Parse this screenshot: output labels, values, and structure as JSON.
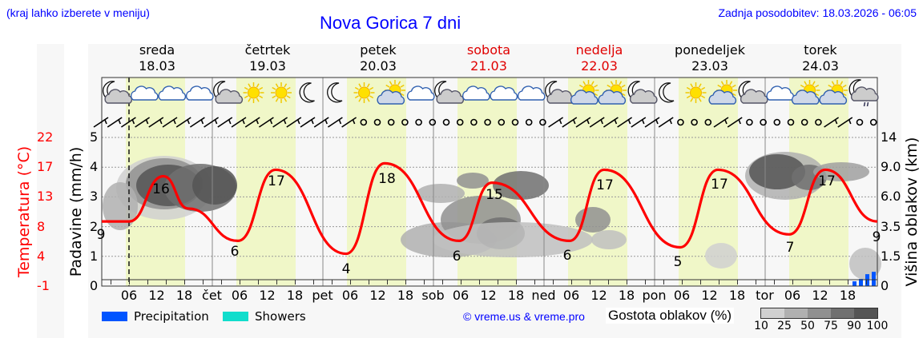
{
  "header": {
    "region_hint": "(kraj lahko izberete v meniju)",
    "title": "Nova Gorica 7 dni",
    "last_update": "Zadnja posodobitev: 18.03.2026 - 06:05"
  },
  "days": [
    {
      "name": "sreda",
      "date": "18.03",
      "weekend": false
    },
    {
      "name": "četrtek",
      "date": "19.03",
      "weekend": false
    },
    {
      "name": "petek",
      "date": "20.03",
      "weekend": false
    },
    {
      "name": "sobota",
      "date": "21.03",
      "weekend": true
    },
    {
      "name": "nedelja",
      "date": "22.03",
      "weekend": true
    },
    {
      "name": "ponedeljek",
      "date": "23.03",
      "weekend": false
    },
    {
      "name": "torek",
      "date": "24.03",
      "weekend": false
    }
  ],
  "axes": {
    "temp_label": "Temperatura (°C)",
    "temp_ticks": [
      "22",
      "17",
      "13",
      "8",
      "4",
      "-1"
    ],
    "precip_label": "Padavine (mm/h)",
    "precip_ticks": [
      "5",
      "4",
      "3",
      "2",
      "1",
      "0"
    ],
    "cloud_label": "Višina oblakov (km)",
    "cloud_ticks": [
      "14",
      "9.0",
      "6.0",
      "3.5",
      "1.5",
      "0"
    ],
    "x_ticks": [
      "06",
      "12",
      "18",
      "čet",
      "06",
      "12",
      "18",
      "pet",
      "06",
      "12",
      "18",
      "sob",
      "06",
      "12",
      "18",
      "ned",
      "06",
      "12",
      "18",
      "pon",
      "06",
      "12",
      "18",
      "tor",
      "06",
      "12",
      "18"
    ]
  },
  "weather_icons": [
    "moon-cloud",
    "cloud",
    "cloud",
    "cloud",
    "moon-cloud",
    "sun",
    "sun",
    "moon",
    "moon",
    "sun",
    "sun-cloud",
    "cloud",
    "moon-cloud",
    "cloud",
    "cloud",
    "cloud",
    "moon-cloud",
    "sun-cloud",
    "sun-cloud",
    "moon-cloud",
    "moon",
    "sun",
    "sun-cloud",
    "moon-cloud",
    "cloud",
    "sun-cloud",
    "sun-cloud",
    "moon-cloud-rain"
  ],
  "legend": {
    "precipitation": "Precipitation",
    "showers": "Showers",
    "copyright": "© vreme.us & vreme.pro",
    "cloud_density_label": "Gostota oblakov (%)",
    "cloud_density_ticks": [
      "10",
      "25",
      "50",
      "75",
      "90",
      "100"
    ],
    "colors": {
      "precipitation": "#0055ff",
      "showers": "#11ddcc",
      "temperature": "#ff0000",
      "daylight": "#f0f7c8"
    }
  },
  "chart_data": {
    "type": "line",
    "title": "Nova Gorica 7 dni",
    "xlabel": "",
    "ylabel": "Temperatura (°C)",
    "ylim": [
      -1,
      22
    ],
    "grid": true,
    "series": [
      {
        "name": "Temperatura (°C)",
        "color": "#ff0000",
        "x": [
          "18.03 02h",
          "18.03 06h",
          "18.03 13h",
          "18.03 18h",
          "19.03 06h",
          "19.03 14h",
          "20.03 05h",
          "20.03 14h",
          "21.03 06h",
          "21.03 13h",
          "22.03 06h",
          "22.03 14h",
          "23.03 05h",
          "23.03 14h",
          "24.03 05h",
          "24.03 14h",
          "24.03 24h"
        ],
        "values": [
          9,
          9,
          16,
          11,
          6,
          17,
          4,
          18,
          6,
          15,
          6,
          17,
          5,
          17,
          7,
          17,
          9
        ]
      },
      {
        "name": "Precipitation (mm/h)",
        "color": "#0055ff",
        "x": [
          "24.03 20h",
          "24.03 21h",
          "24.03 22h",
          "24.03 23h"
        ],
        "values": [
          0.2,
          0.3,
          0.5,
          0.6
        ]
      }
    ],
    "annotations": {
      "temp_labels": [
        "9",
        "16",
        "6",
        "17",
        "4",
        "18",
        "6",
        "15",
        "6",
        "17",
        "5",
        "17",
        "7",
        "17",
        "9"
      ],
      "now_marker": "18.03 06h"
    },
    "secondary_axes": {
      "precip_mm_h": [
        0,
        5
      ],
      "cloud_height_km": [
        "0",
        "1.5",
        "3.5",
        "6.0",
        "9.0",
        "14"
      ]
    },
    "legend_position": "bottom"
  }
}
